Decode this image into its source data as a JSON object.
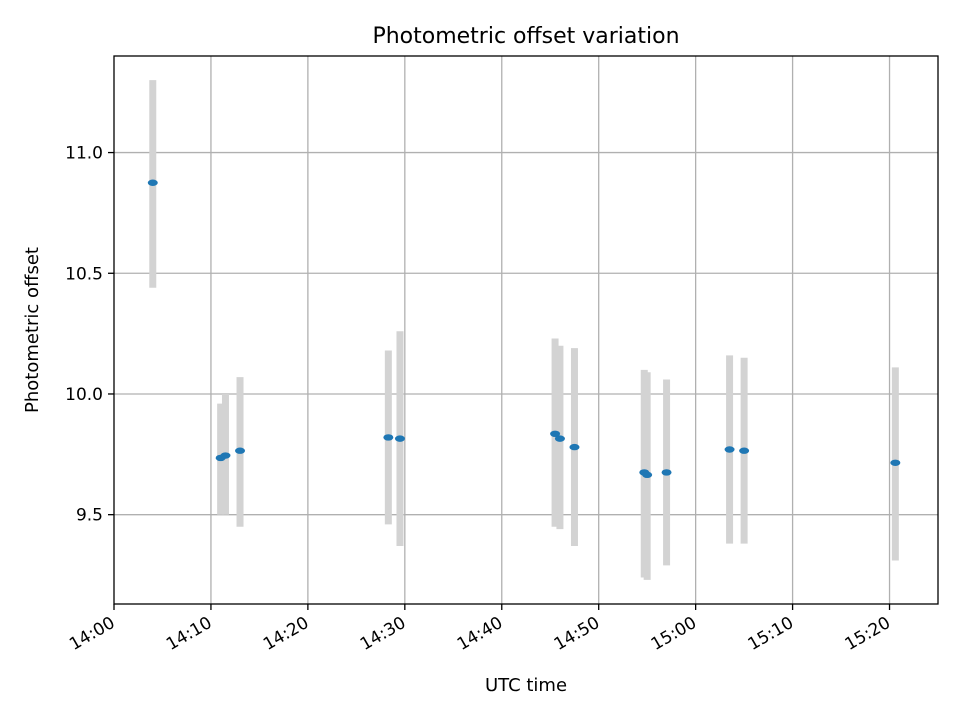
{
  "chart_data": {
    "type": "scatter",
    "title": "Photometric offset variation",
    "xlabel": "UTC time",
    "ylabel": "Photometric offset",
    "grid": true,
    "colors": {
      "marker": "#1f77b4",
      "errorbar": "#d3d3d3",
      "grid": "#b0b0b0"
    },
    "xlim": [
      "14:00",
      "15:25"
    ],
    "ylim": [
      9.13,
      11.4
    ],
    "x_ticks": [
      "14:00",
      "14:10",
      "14:20",
      "14:30",
      "14:40",
      "14:50",
      "15:00",
      "15:10",
      "15:20"
    ],
    "y_ticks": [
      "9.5",
      "10.0",
      "10.5",
      "11.0"
    ],
    "series": [
      {
        "points": [
          {
            "x": "14:04",
            "y": 10.875,
            "ylo": 10.44,
            "yhi": 11.3
          },
          {
            "x": "14:11",
            "y": 9.735,
            "ylo": 9.5,
            "yhi": 9.96
          },
          {
            "x": "14:11.5",
            "y": 9.745,
            "ylo": 9.5,
            "yhi": 10.0
          },
          {
            "x": "14:13",
            "y": 9.765,
            "ylo": 9.45,
            "yhi": 10.07
          },
          {
            "x": "14:28.3",
            "y": 9.82,
            "ylo": 9.46,
            "yhi": 10.18
          },
          {
            "x": "14:29.5",
            "y": 9.815,
            "ylo": 9.37,
            "yhi": 10.26
          },
          {
            "x": "14:45.5",
            "y": 9.835,
            "ylo": 9.45,
            "yhi": 10.23
          },
          {
            "x": "14:46",
            "y": 9.815,
            "ylo": 9.44,
            "yhi": 10.2
          },
          {
            "x": "14:47.5",
            "y": 9.78,
            "ylo": 9.37,
            "yhi": 10.19
          },
          {
            "x": "14:54.7",
            "y": 9.675,
            "ylo": 9.24,
            "yhi": 10.1
          },
          {
            "x": "14:55",
            "y": 9.665,
            "ylo": 9.23,
            "yhi": 10.09
          },
          {
            "x": "14:57",
            "y": 9.675,
            "ylo": 9.29,
            "yhi": 10.06
          },
          {
            "x": "15:03.5",
            "y": 9.77,
            "ylo": 9.38,
            "yhi": 10.16
          },
          {
            "x": "15:05",
            "y": 9.765,
            "ylo": 9.38,
            "yhi": 10.15
          },
          {
            "x": "15:20.6",
            "y": 9.715,
            "ylo": 9.31,
            "yhi": 10.11
          }
        ]
      }
    ]
  }
}
